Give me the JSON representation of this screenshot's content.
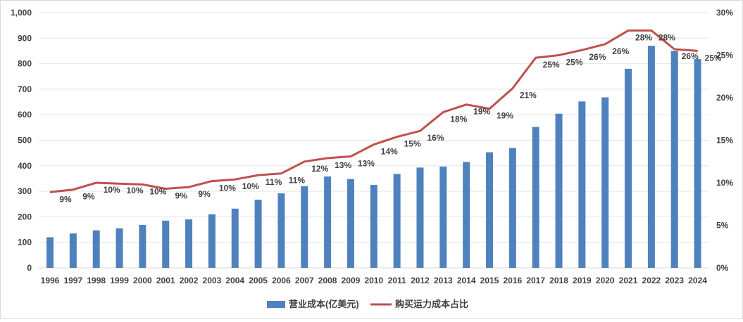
{
  "chart_data": {
    "type": "bar+line",
    "categories": [
      "1996",
      "1997",
      "1998",
      "1999",
      "2000",
      "2001",
      "2002",
      "2003",
      "2004",
      "2005",
      "2006",
      "2007",
      "2008",
      "2009",
      "2010",
      "2011",
      "2012",
      "2013",
      "2014",
      "2015",
      "2016",
      "2017",
      "2018",
      "2019",
      "2020",
      "2021",
      "2022",
      "2023",
      "2024"
    ],
    "series": [
      {
        "name": "营业成本(亿美元)",
        "type": "bar",
        "axis": "left",
        "color": "#4f81bd",
        "values": [
          120,
          135,
          147,
          155,
          168,
          185,
          190,
          210,
          232,
          267,
          292,
          320,
          358,
          348,
          325,
          368,
          393,
          397,
          415,
          453,
          470,
          552,
          604,
          652,
          668,
          780,
          870,
          850,
          818
        ]
      },
      {
        "name": "购买运力成本占比",
        "type": "line",
        "axis": "right",
        "color": "#c0504d",
        "values": [
          8.9,
          9.2,
          10.0,
          9.9,
          9.8,
          9.3,
          9.5,
          10.2,
          10.4,
          10.9,
          11.1,
          12.5,
          12.9,
          13.1,
          14.5,
          15.4,
          16.1,
          18.3,
          19.2,
          18.7,
          21.1,
          24.7,
          25.0,
          25.6,
          26.3,
          27.9,
          27.9,
          25.7,
          25.5
        ],
        "labels": [
          "9%",
          "9%",
          "10%",
          "10%",
          "10%",
          "9%",
          "9%",
          "10%",
          "10%",
          "11%",
          "11%",
          "12%",
          "13%",
          "13%",
          "14%",
          "15%",
          "16%",
          "18%",
          "19%",
          "19%",
          "21%",
          "25%",
          "25%",
          "26%",
          "26%",
          "28%",
          "28%",
          "26%",
          "25%"
        ]
      }
    ],
    "y_left": {
      "range": [
        0,
        1000
      ],
      "ticks": [
        "0",
        "100",
        "200",
        "300",
        "400",
        "500",
        "600",
        "700",
        "800",
        "900",
        "1,000"
      ]
    },
    "y_right": {
      "range": [
        0,
        30
      ],
      "ticks": [
        "0%",
        "5%",
        "10%",
        "15%",
        "20%",
        "25%",
        "30%"
      ]
    },
    "grid": true,
    "legend_position": "bottom"
  }
}
